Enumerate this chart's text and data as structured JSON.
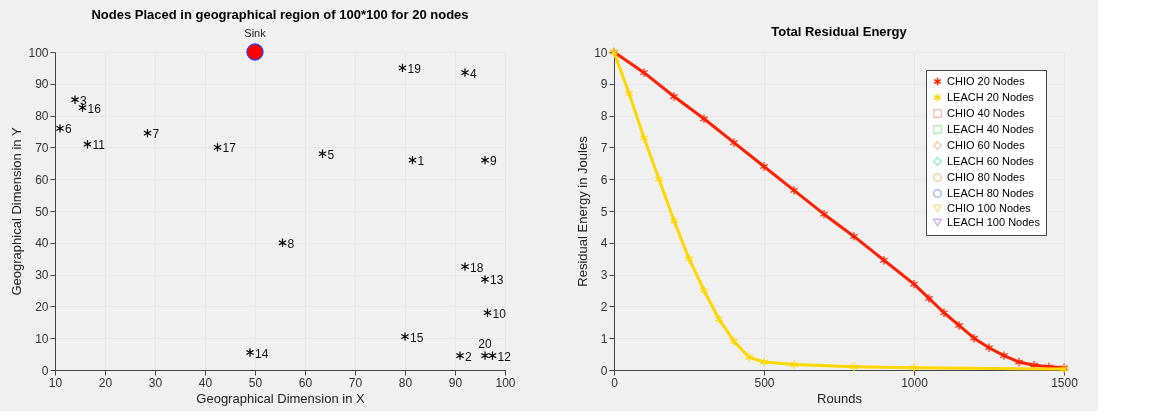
{
  "chart_data": [
    {
      "type": "scatter",
      "title": "Nodes Placed in geographical region of 100*100 for 20 nodes",
      "xlabel": "Geographical Dimension in X",
      "ylabel": "Geographical Dimension in Y",
      "xlim": [
        10,
        100
      ],
      "xticks": [
        10,
        20,
        30,
        40,
        50,
        60,
        70,
        80,
        90,
        100
      ],
      "ylim": [
        0,
        100
      ],
      "yticks": [
        0,
        10,
        20,
        30,
        40,
        50,
        60,
        70,
        80,
        90,
        100
      ],
      "grid": true,
      "marker": "cross",
      "series": [
        {
          "color": "#000000",
          "x": [
            81.5,
            91,
            14,
            92,
            63.5,
            11,
            28.5,
            55.5,
            96,
            96.5,
            16.5,
            97.5,
            96,
            49,
            80,
            15.5,
            42.5,
            92,
            79.5,
            96
          ],
          "values": [
            66,
            4.5,
            85,
            93.5,
            68,
            76,
            74.5,
            40,
            66,
            18,
            71,
            4.5,
            28.5,
            5.5,
            10.5,
            82.5,
            70,
            32.5,
            95,
            4.5
          ]
        },
        {
          "name": "Sink",
          "color": "#ff0000",
          "marker": "circle",
          "x": [
            50
          ],
          "values": [
            100
          ]
        }
      ],
      "annotations": [
        {
          "text": "1",
          "x": 81.5,
          "y": 66
        },
        {
          "text": "2",
          "x": 91,
          "y": 4.5
        },
        {
          "text": "3",
          "x": 14,
          "y": 85
        },
        {
          "text": "4",
          "x": 92,
          "y": 93.5
        },
        {
          "text": "5",
          "x": 63.5,
          "y": 68
        },
        {
          "text": "6",
          "x": 11,
          "y": 76
        },
        {
          "text": "7",
          "x": 28.5,
          "y": 74.5
        },
        {
          "text": "8",
          "x": 55.5,
          "y": 40
        },
        {
          "text": "9",
          "x": 96,
          "y": 66
        },
        {
          "text": "10",
          "x": 96.5,
          "y": 18
        },
        {
          "text": "11",
          "x": 16.5,
          "y": 71
        },
        {
          "text": "12",
          "x": 97.5,
          "y": 4.5
        },
        {
          "text": "13",
          "x": 96,
          "y": 28.5
        },
        {
          "text": "14",
          "x": 49,
          "y": 5.5
        },
        {
          "text": "15",
          "x": 80,
          "y": 10.5
        },
        {
          "text": "16",
          "x": 15.5,
          "y": 82.5
        },
        {
          "text": "17",
          "x": 42.5,
          "y": 70
        },
        {
          "text": "18",
          "x": 92,
          "y": 32.5
        },
        {
          "text": "19",
          "x": 79.5,
          "y": 95
        },
        {
          "text": "20",
          "x": 96,
          "y": 4.5
        }
      ]
    },
    {
      "type": "line",
      "title": "Total Residual Energy",
      "xlabel": "Rounds",
      "ylabel": "Residual Energy in Joules",
      "xlim": [
        0,
        1500
      ],
      "xticks": [
        0,
        500,
        1000,
        1500
      ],
      "ylim": [
        0,
        10
      ],
      "yticks": [
        0,
        1,
        2,
        3,
        4,
        5,
        6,
        7,
        8,
        9,
        10
      ],
      "grid": true,
      "legend": "top right",
      "line_style": "solid",
      "series": [
        {
          "name": "CHIO 20 Nodes",
          "color": "#ff2000",
          "marker": "cross",
          "x": [
            0,
            100,
            200,
            300,
            400,
            500,
            600,
            700,
            800,
            900,
            1000,
            1050,
            1100,
            1150,
            1200,
            1250,
            1300,
            1350,
            1400,
            1450,
            1500
          ],
          "values": [
            10,
            9.35,
            8.6,
            7.9,
            7.15,
            6.4,
            5.65,
            4.9,
            4.2,
            3.45,
            2.7,
            2.25,
            1.8,
            1.4,
            1.0,
            0.7,
            0.45,
            0.25,
            0.15,
            0.1,
            0.07
          ]
        },
        {
          "name": "LEACH 20 Nodes",
          "color": "#ffd700",
          "marker": "cross",
          "x": [
            0,
            50,
            100,
            150,
            200,
            250,
            300,
            350,
            400,
            450,
            500,
            600,
            800,
            1000,
            1500
          ],
          "values": [
            10,
            8.7,
            7.3,
            6.0,
            4.7,
            3.5,
            2.5,
            1.6,
            0.9,
            0.4,
            0.25,
            0.17,
            0.1,
            0.07,
            0.03
          ]
        },
        {
          "name": "CHIO 40 Nodes",
          "color": "#f6c2b4",
          "marker": "square"
        },
        {
          "name": "LEACH 40 Nodes",
          "color": "#b4f0b4",
          "marker": "square"
        },
        {
          "name": "CHIO 60 Nodes",
          "color": "#f8cdb6",
          "marker": "diamond"
        },
        {
          "name": "LEACH 60 Nodes",
          "color": "#a0f0d8",
          "marker": "diamond"
        },
        {
          "name": "CHIO 80 Nodes",
          "color": "#f8d0a0",
          "marker": "circle"
        },
        {
          "name": "LEACH 80 Nodes",
          "color": "#a8c0f4",
          "marker": "circle"
        },
        {
          "name": "CHIO 100 Nodes",
          "color": "#f8e4a0",
          "marker": "triangle"
        },
        {
          "name": "LEACH 100 Nodes",
          "color": "#d8b4f4",
          "marker": "triangle"
        }
      ]
    }
  ]
}
